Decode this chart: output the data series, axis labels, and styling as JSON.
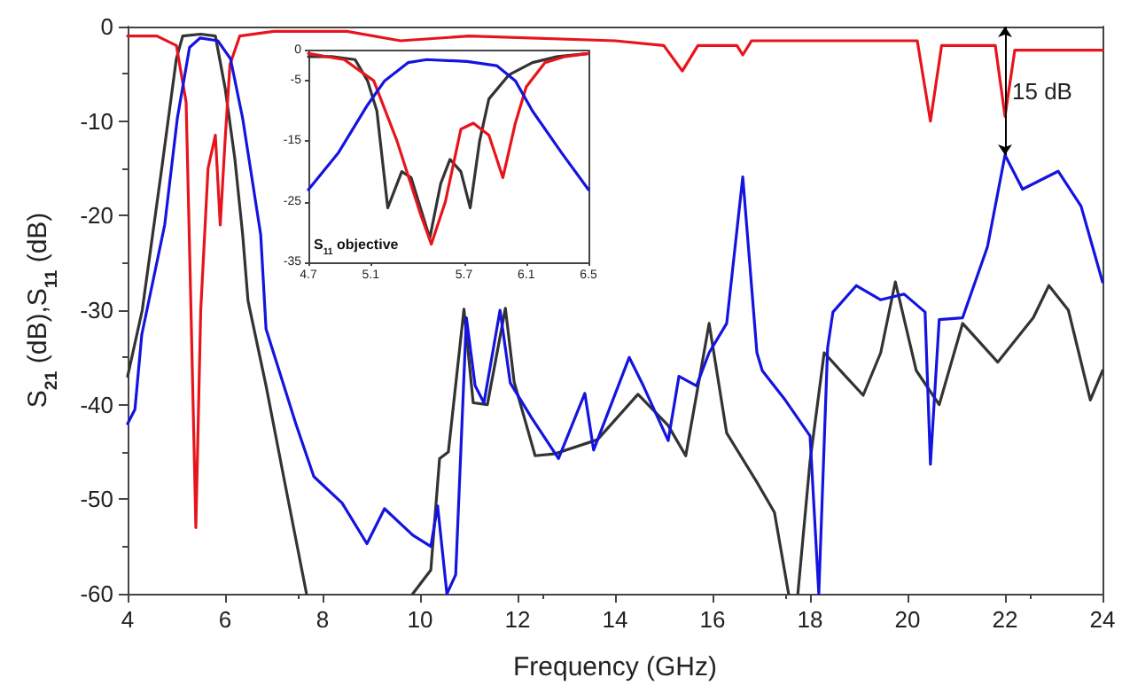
{
  "chart_data": [
    {
      "type": "line",
      "xlabel": "Frequency (GHz)",
      "ylabel": "S$_{21}$ (dB),S$_{11}$ (dB)",
      "xlim": [
        4,
        24
      ],
      "ylim": [
        -60,
        0
      ],
      "xticks": [
        4,
        6,
        8,
        10,
        12,
        14,
        16,
        18,
        20,
        22,
        24
      ],
      "yticks": [
        -60,
        -50,
        -40,
        -30,
        -20,
        -10,
        0
      ],
      "grid": false,
      "marker": "none",
      "line_style": "solid",
      "annotations": [
        {
          "text": "15 dB",
          "x": 22,
          "y": -13.6
        }
      ],
      "series": [
        {
          "color": "#333333",
          "x": [
            4,
            4.3,
            4.7,
            5.0,
            5.13,
            5.5,
            5.8,
            6.0,
            6.2,
            6.36,
            6.47,
            6.84,
            7.2,
            7.67,
            7.8,
            9.7,
            9.85,
            10.22,
            10.4,
            10.58,
            10.9,
            11.09,
            11.38,
            11.75,
            11.93,
            12.36,
            12.76,
            13.64,
            14.47,
            15.09,
            15.45,
            15.93,
            16.29,
            16.91,
            17.27,
            17.56,
            17.65,
            17.75,
            18.0,
            18.29,
            18.73,
            19.09,
            19.45,
            19.75,
            20.18,
            20.65,
            21.13,
            21.85,
            22.58,
            22.9,
            23.3,
            23.75,
            24
          ],
          "values": [
            -37,
            -30,
            -15,
            -3.4,
            -1,
            -0.8,
            -1,
            -6.5,
            -14,
            -22,
            -29,
            -38,
            -47.6,
            -60,
            null,
            null,
            -60,
            -57.5,
            -45.7,
            -45,
            -29.9,
            -39.8,
            -40,
            -29.8,
            -37.6,
            -45.4,
            -45.2,
            -43.7,
            -38.9,
            -42.2,
            -45.4,
            -31.4,
            -43,
            -48.2,
            -51.4,
            -60,
            null,
            -60,
            -46,
            -34.5,
            -37,
            -39,
            -34.5,
            -27,
            -36.4,
            -40,
            -31.4,
            -35.5,
            -30.8,
            -27.4,
            -30,
            -39.5,
            -36.4
          ]
        },
        {
          "color": "#e8141c",
          "x": [
            4,
            4.6,
            5.0,
            5.2,
            5.3,
            5.4,
            5.5,
            5.65,
            5.8,
            5.9,
            6.0,
            6.1,
            6.3,
            7,
            8.5,
            9.6,
            11,
            14,
            15,
            15.38,
            15.7,
            16.5,
            16.62,
            16.8,
            20.2,
            20.47,
            20.7,
            21.8,
            22,
            22.2,
            24
          ],
          "values": [
            -1,
            -1,
            -2,
            -8,
            -30,
            -53,
            -30,
            -15,
            -11.5,
            -21,
            -12,
            -4,
            -1,
            -0.5,
            -0.5,
            -1.5,
            -1,
            -1.5,
            -2,
            -4.7,
            -2,
            -2,
            -3,
            -1.5,
            -1.5,
            -10,
            -2,
            -2,
            -9.5,
            -2.5,
            -2.5
          ]
        },
        {
          "color": "#1414e0",
          "x": [
            4,
            4.15,
            4.29,
            4.76,
            5.02,
            5.27,
            5.49,
            5.85,
            6.11,
            6.36,
            6.73,
            6.84,
            7.45,
            7.82,
            8.4,
            8.91,
            9.27,
            9.85,
            10.22,
            10.36,
            10.55,
            10.73,
            10.95,
            11.13,
            11.31,
            11.64,
            11.85,
            12.29,
            12.84,
            13.38,
            13.56,
            14.29,
            14.58,
            15.09,
            15.31,
            15.67,
            15.93,
            16.29,
            16.62,
            16.91,
            17.02,
            17.49,
            18.0,
            18.18,
            18.36,
            18.47,
            18.95,
            19.45,
            19.93,
            20.36,
            20.47,
            20.65,
            21.13,
            21.64,
            22.0,
            22.36,
            23.09,
            23.56,
            24
          ],
          "values": [
            -42,
            -40.5,
            -32.6,
            -21,
            -9.7,
            -2.2,
            -1.2,
            -1.5,
            -3.4,
            -9.7,
            -22,
            -32,
            -42,
            -47.6,
            -50.4,
            -54.7,
            -51,
            -53.8,
            -55,
            -50.7,
            -60,
            -58,
            -30.8,
            -38,
            -39.8,
            -30,
            -37.7,
            -41.4,
            -45.7,
            -38.8,
            -44.8,
            -35,
            -38,
            -43.8,
            -37,
            -38,
            -34.5,
            -31.4,
            -15.9,
            -34.5,
            -36.4,
            -39.5,
            -43.3,
            -60,
            -34,
            -30.2,
            -27.4,
            -28.9,
            -28.3,
            -30.2,
            -46.3,
            -31,
            -30.8,
            -23.3,
            -13.6,
            -17.2,
            -15.3,
            -19,
            -27
          ]
        }
      ]
    },
    {
      "type": "line",
      "xlim": [
        4.7,
        6.5
      ],
      "ylim": [
        -35,
        0
      ],
      "xticks": [
        4.7,
        5.1,
        5.7,
        6.1,
        6.5
      ],
      "yticks": [
        -35,
        -25,
        -15,
        -5,
        0
      ],
      "grid": false,
      "marker": "none",
      "line_style": "solid",
      "annotations": [
        "S$_{11}$ objective"
      ],
      "series": [
        {
          "color": "#333333",
          "x": [
            4.7,
            4.85,
            5.0,
            5.08,
            5.14,
            5.21,
            5.3,
            5.36,
            5.42,
            5.48,
            5.55,
            5.61,
            5.68,
            5.74,
            5.8,
            5.86,
            5.99,
            6.14,
            6.3,
            6.5
          ],
          "values": [
            -1,
            -1,
            -1.5,
            -5,
            -10,
            -26,
            -20,
            -21,
            -26,
            -31,
            -22,
            -18,
            -20,
            -26,
            -15,
            -8,
            -4,
            -2,
            -1,
            -0.5
          ]
        },
        {
          "color": "#e8141c",
          "x": [
            4.7,
            4.93,
            5.12,
            5.27,
            5.42,
            5.49,
            5.58,
            5.68,
            5.76,
            5.86,
            5.95,
            6.03,
            6.1,
            6.22,
            6.35,
            6.5
          ],
          "values": [
            -0.5,
            -1.5,
            -5,
            -15,
            -27,
            -32,
            -25,
            -13,
            -12,
            -14,
            -21,
            -12,
            -6,
            -2,
            -1,
            -0.5
          ]
        },
        {
          "color": "#1414e0",
          "x": [
            4.7,
            4.89,
            5.08,
            5.19,
            5.34,
            5.46,
            5.72,
            5.91,
            6.03,
            6.14,
            6.33,
            6.5
          ],
          "values": [
            -23,
            -17,
            -9,
            -5,
            -2,
            -1.5,
            -1.8,
            -2.5,
            -5,
            -10,
            -17,
            -23
          ]
        }
      ]
    }
  ]
}
